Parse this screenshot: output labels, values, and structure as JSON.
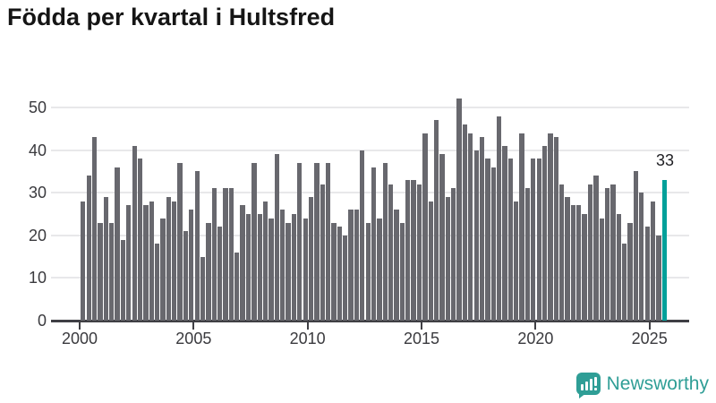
{
  "title": "Födda per kvartal i Hultsfred",
  "branding": {
    "logo_text": "Newsworthy"
  },
  "colors": {
    "bar": "#68686e",
    "highlight": "#00a09a",
    "grid": "#e8e8ea",
    "axis": "#3f3f44",
    "title": "#151515",
    "tick_label": "#3a3a3e",
    "logo": "#2f9e96"
  },
  "chart_data": {
    "type": "bar",
    "title": "Födda per kvartal i Hultsfred",
    "x_start_year": 2000,
    "x_start_quarter": 1,
    "x_end_year": 2025,
    "x_end_quarter": 3,
    "values": [
      28,
      34,
      43,
      23,
      29,
      23,
      36,
      19,
      27,
      41,
      38,
      27,
      28,
      18,
      24,
      29,
      28,
      37,
      21,
      26,
      35,
      15,
      23,
      31,
      22,
      31,
      31,
      16,
      27,
      25,
      37,
      25,
      28,
      24,
      39,
      26,
      23,
      25,
      37,
      24,
      29,
      37,
      32,
      37,
      23,
      22,
      20,
      26,
      26,
      40,
      23,
      36,
      24,
      37,
      32,
      26,
      23,
      33,
      33,
      32,
      44,
      28,
      47,
      39,
      29,
      31,
      52,
      46,
      44,
      40,
      43,
      38,
      36,
      48,
      41,
      38,
      28,
      44,
      31,
      38,
      38,
      41,
      44,
      43,
      32,
      29,
      27,
      27,
      25,
      32,
      34,
      24,
      31,
      32,
      25,
      18,
      23,
      35,
      30,
      22,
      28,
      20,
      33
    ],
    "highlight_last_bar": true,
    "last_point_label": "33",
    "xticks": [
      2000,
      2005,
      2010,
      2015,
      2020,
      2025
    ],
    "yticks": [
      0,
      10,
      20,
      30,
      40,
      50
    ],
    "ylim": [
      0,
      50
    ],
    "xlabel": "",
    "ylabel": "",
    "grid": "horizontal",
    "legend": "none"
  }
}
